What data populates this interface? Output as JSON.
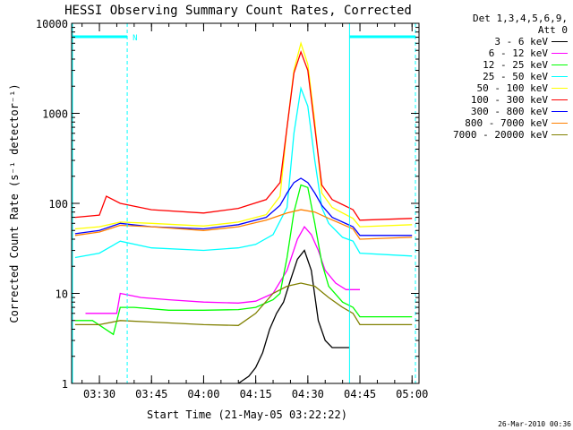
{
  "chart_data": {
    "type": "line",
    "title": "HESSI Observing Summary Count Rates, Corrected",
    "xlabel": "Start Time (21-May-05 03:22:22)",
    "ylabel": "Corrected Count Rate (s⁻¹ detector⁻¹)",
    "x_ticks": [
      "03:30",
      "03:45",
      "04:00",
      "04:15",
      "04:30",
      "04:45",
      "05:00"
    ],
    "y_ticks": [
      "1",
      "10",
      "100",
      "1000",
      "10000"
    ],
    "y_scale": "log",
    "ylim": [
      1,
      10000
    ],
    "xlim": [
      "03:22",
      "05:02"
    ],
    "legend_header": [
      "Det 1,3,4,5,6,9,",
      "Att 0"
    ],
    "flag_label": "N",
    "series": [
      {
        "name": "3 - 6 keV",
        "color": "#000000",
        "x": [
          "04:10",
          "04:13",
          "04:15",
          "04:17",
          "04:19",
          "04:21",
          "04:23",
          "04:25",
          "04:27",
          "04:29",
          "04:31",
          "04:33",
          "04:35",
          "04:37",
          "04:40",
          "04:42"
        ],
        "y": [
          1.0,
          1.2,
          1.5,
          2.2,
          4,
          6,
          8,
          14,
          24,
          30,
          18,
          5,
          3,
          2.5,
          2.5,
          2.5
        ]
      },
      {
        "name": "6 - 12 keV",
        "color": "#ff00ff",
        "x": [
          "03:26",
          "03:35",
          "03:36",
          "03:42",
          "03:50",
          "04:00",
          "04:10",
          "04:15",
          "04:20",
          "04:24",
          "04:27",
          "04:29",
          "04:31",
          "04:33",
          "04:35",
          "04:38",
          "04:41",
          "04:45"
        ],
        "y": [
          6,
          6,
          10,
          9,
          8.5,
          8,
          7.8,
          8.2,
          10,
          18,
          40,
          55,
          45,
          30,
          18,
          13,
          11,
          11
        ]
      },
      {
        "name": "12 - 25 keV",
        "color": "#00ff00",
        "x": [
          "03:23",
          "03:28",
          "03:34",
          "03:36",
          "03:40",
          "03:50",
          "04:00",
          "04:10",
          "04:15",
          "04:20",
          "04:22",
          "04:24",
          "04:26",
          "04:28",
          "04:30",
          "04:32",
          "04:34",
          "04:36",
          "04:40",
          "04:43",
          "04:45",
          "05:00"
        ],
        "y": [
          5,
          5,
          3.5,
          7,
          7,
          6.5,
          6.5,
          6.6,
          7,
          8.5,
          10,
          25,
          80,
          160,
          150,
          60,
          22,
          12,
          8,
          7,
          5.5,
          5.5
        ]
      },
      {
        "name": "25 - 50 keV",
        "color": "#00ffff",
        "x": [
          "03:23",
          "03:30",
          "03:36",
          "03:45",
          "04:00",
          "04:10",
          "04:15",
          "04:20",
          "04:24",
          "04:26",
          "04:28",
          "04:30",
          "04:32",
          "04:34",
          "04:36",
          "04:40",
          "04:43",
          "04:45",
          "05:00"
        ],
        "y": [
          25,
          28,
          38,
          32,
          30,
          32,
          35,
          45,
          90,
          600,
          1900,
          1200,
          300,
          90,
          60,
          42,
          38,
          28,
          26
        ]
      },
      {
        "name": "50 - 100 keV",
        "color": "#ffff00",
        "x": [
          "03:23",
          "03:30",
          "03:36",
          "03:45",
          "04:00",
          "04:10",
          "04:18",
          "04:22",
          "04:24",
          "04:26",
          "04:28",
          "04:30",
          "04:32",
          "04:34",
          "04:37",
          "04:43",
          "04:45",
          "05:00"
        ],
        "y": [
          52,
          55,
          62,
          60,
          56,
          62,
          75,
          120,
          700,
          3000,
          6000,
          3500,
          800,
          130,
          90,
          68,
          55,
          58
        ]
      },
      {
        "name": "100 - 300 keV",
        "color": "#ff0000",
        "x": [
          "03:23",
          "03:30",
          "03:32",
          "03:36",
          "03:45",
          "04:00",
          "04:10",
          "04:18",
          "04:22",
          "04:24",
          "04:26",
          "04:28",
          "04:30",
          "04:32",
          "04:34",
          "04:37",
          "04:43",
          "04:45",
          "05:00"
        ],
        "y": [
          70,
          74,
          120,
          100,
          85,
          78,
          88,
          110,
          170,
          700,
          2800,
          4800,
          3000,
          700,
          160,
          110,
          85,
          65,
          68
        ]
      },
      {
        "name": "300 - 800 keV",
        "color": "#0000ff",
        "x": [
          "03:23",
          "03:30",
          "03:36",
          "03:45",
          "04:00",
          "04:10",
          "04:18",
          "04:22",
          "04:24",
          "04:26",
          "04:28",
          "04:30",
          "04:32",
          "04:34",
          "04:37",
          "04:43",
          "04:45",
          "05:00"
        ],
        "y": [
          46,
          50,
          60,
          55,
          52,
          58,
          70,
          95,
          130,
          170,
          190,
          170,
          130,
          95,
          70,
          55,
          44,
          44
        ]
      },
      {
        "name": "800 - 7000 keV",
        "color": "#ff8000",
        "x": [
          "03:23",
          "03:30",
          "03:36",
          "03:45",
          "04:00",
          "04:10",
          "04:18",
          "04:24",
          "04:28",
          "04:32",
          "04:36",
          "04:43",
          "04:45",
          "05:00"
        ],
        "y": [
          44,
          48,
          57,
          55,
          50,
          55,
          65,
          78,
          85,
          80,
          68,
          52,
          40,
          42
        ]
      },
      {
        "name": "7000 - 20000 keV",
        "color": "#808000",
        "x": [
          "03:23",
          "03:30",
          "03:36",
          "03:45",
          "04:00",
          "04:10",
          "04:15",
          "04:20",
          "04:24",
          "04:28",
          "04:32",
          "04:36",
          "04:40",
          "04:43",
          "04:45",
          "05:00"
        ],
        "y": [
          4.5,
          4.5,
          5,
          4.8,
          4.5,
          4.4,
          6,
          10,
          12,
          13,
          12,
          9,
          7,
          6,
          4.5,
          4.5
        ]
      }
    ]
  },
  "footer_stamp": "26-Mar-2010 00:36",
  "colors": {
    "axis": "#000000",
    "flag": "#00ffff"
  }
}
